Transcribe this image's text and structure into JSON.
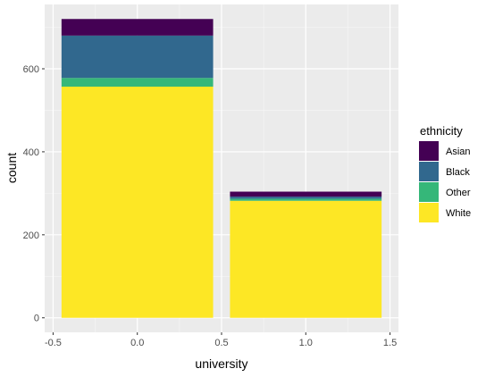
{
  "chart_data": {
    "type": "bar",
    "stacked": true,
    "x": [
      0.0,
      1.0
    ],
    "bar_width": 0.9,
    "xlabel": "university",
    "ylabel": "count",
    "xlim": [
      -0.5,
      1.5
    ],
    "ylim": [
      0,
      720
    ],
    "x_ticks": [
      -0.5,
      0.0,
      0.5,
      1.0,
      1.5
    ],
    "x_tick_labels": [
      "-0.5",
      "0.0",
      "0.5",
      "1.0",
      "1.5"
    ],
    "y_ticks": [
      0,
      200,
      400,
      600
    ],
    "y_tick_labels": [
      "0",
      "200",
      "400",
      "600"
    ],
    "grid": true,
    "legend_title": "ethnicity",
    "legend_position": "right",
    "series": [
      {
        "name": "Asian",
        "color": "#440154",
        "values": [
          40,
          12
        ]
      },
      {
        "name": "Black",
        "color": "#31688E",
        "values": [
          102,
          5
        ]
      },
      {
        "name": "Other",
        "color": "#35B779",
        "values": [
          21,
          5
        ]
      },
      {
        "name": "White",
        "color": "#FDE725",
        "values": [
          557,
          282
        ]
      }
    ],
    "stack_order_bottom_to_top": [
      "White",
      "Other",
      "Black",
      "Asian"
    ]
  }
}
